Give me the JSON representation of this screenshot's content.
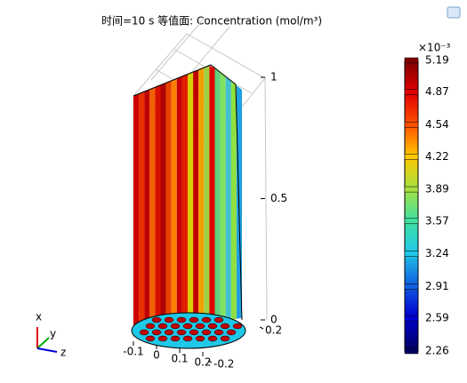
{
  "chart_data": {
    "type": "isosurface",
    "title": "时间=10 s   等值面: Concentration (mol/m³)",
    "zlim": [
      0,
      1
    ],
    "zticks": [
      0,
      0.5,
      1
    ],
    "xlim": [
      -0.1,
      0.2
    ],
    "xticks": [
      -0.1,
      0,
      0.1,
      0.2
    ],
    "ylim": [
      -0.2,
      0.2
    ],
    "yticks": [
      -0.2,
      0.2
    ],
    "axis_labels": {
      "x": "x",
      "y": "y",
      "z": "z"
    },
    "colorbar": {
      "multiplier": "×10⁻³",
      "clim": [
        2.26,
        5.19
      ],
      "ticks": [
        5.19,
        4.87,
        4.54,
        4.22,
        3.89,
        3.57,
        3.24,
        2.91,
        2.59,
        2.26
      ],
      "colors": [
        "#7f0000",
        "#e00000",
        "#ff5000",
        "#ffc800",
        "#a8e040",
        "#40e0a0",
        "#20c8e8",
        "#1060e0",
        "#0000d0",
        "#000060"
      ]
    }
  }
}
